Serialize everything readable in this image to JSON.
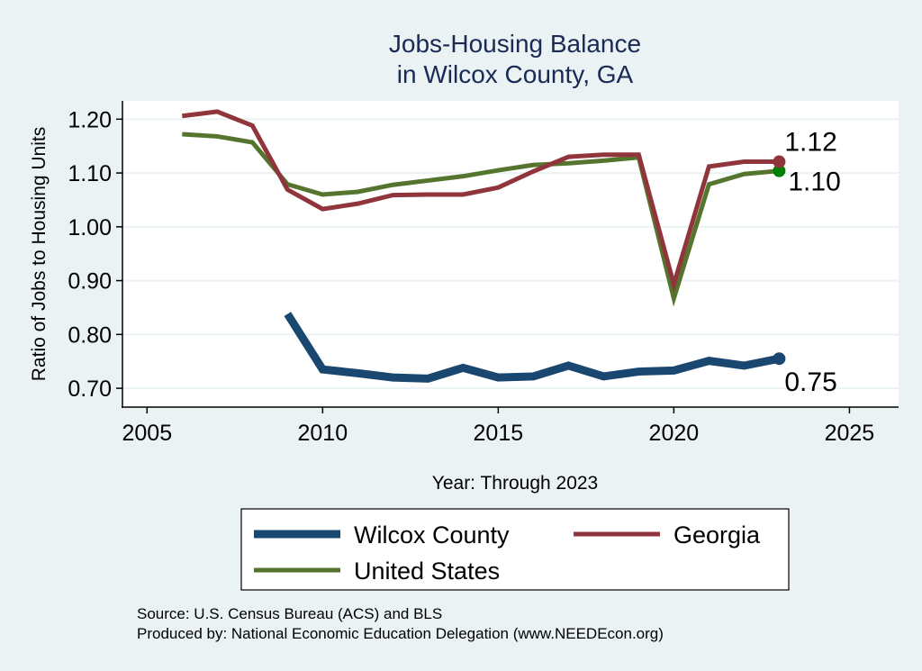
{
  "chart_data": {
    "type": "line",
    "title": [
      "Jobs-Housing Balance",
      "in Wilcox County, GA"
    ],
    "xlabel": "Year: Through 2023",
    "ylabel": "Ratio of Jobs to Housing Units",
    "xlim": [
      2004.3,
      2026.4
    ],
    "ylim": [
      0.665,
      1.234
    ],
    "xticks": [
      2005,
      2010,
      2015,
      2020,
      2025
    ],
    "yticks": [
      0.7,
      0.8,
      0.9,
      1.0,
      1.1,
      1.2
    ],
    "ytick_labels": [
      "0.70",
      "0.80",
      "0.90",
      "1.00",
      "1.10",
      "1.20"
    ],
    "grid": true,
    "legend_position": "bottom",
    "series": [
      {
        "name": "Wilcox County",
        "color": "#1a476f",
        "width": 9,
        "x": [
          2009,
          2010,
          2011,
          2012,
          2013,
          2014,
          2015,
          2016,
          2017,
          2018,
          2019,
          2020,
          2021,
          2022,
          2023
        ],
        "values": [
          0.838,
          0.735,
          0.728,
          0.72,
          0.718,
          0.738,
          0.72,
          0.722,
          0.742,
          0.722,
          0.731,
          0.733,
          0.751,
          0.742,
          0.755
        ],
        "end_label": "0.75",
        "marker_color": "#1a476f"
      },
      {
        "name": "Georgia",
        "color": "#90353b",
        "width": 5,
        "x": [
          2006,
          2007,
          2008,
          2009,
          2010,
          2011,
          2012,
          2013,
          2014,
          2015,
          2016,
          2017,
          2018,
          2019,
          2020,
          2021,
          2022,
          2023
        ],
        "values": [
          1.206,
          1.214,
          1.188,
          1.069,
          1.033,
          1.043,
          1.059,
          1.06,
          1.06,
          1.073,
          1.103,
          1.13,
          1.134,
          1.134,
          0.893,
          1.112,
          1.121,
          1.121
        ],
        "end_label": "1.12",
        "marker_color": "#90353b"
      },
      {
        "name": "United States",
        "color": "#55752f",
        "width": 5,
        "x": [
          2006,
          2007,
          2008,
          2009,
          2010,
          2011,
          2012,
          2013,
          2014,
          2015,
          2016,
          2017,
          2018,
          2019,
          2020,
          2021,
          2022,
          2023
        ],
        "values": [
          1.172,
          1.168,
          1.157,
          1.079,
          1.06,
          1.065,
          1.078,
          1.086,
          1.094,
          1.105,
          1.115,
          1.118,
          1.123,
          1.129,
          0.867,
          1.079,
          1.098,
          1.104
        ],
        "end_label": "1.10",
        "marker_color": "#008000"
      }
    ]
  },
  "notes": {
    "source": "Source: U.S. Census Bureau (ACS) and BLS",
    "produced_by": "Produced by: National Economic Education Delegation (www.NEEDEcon.org)"
  }
}
